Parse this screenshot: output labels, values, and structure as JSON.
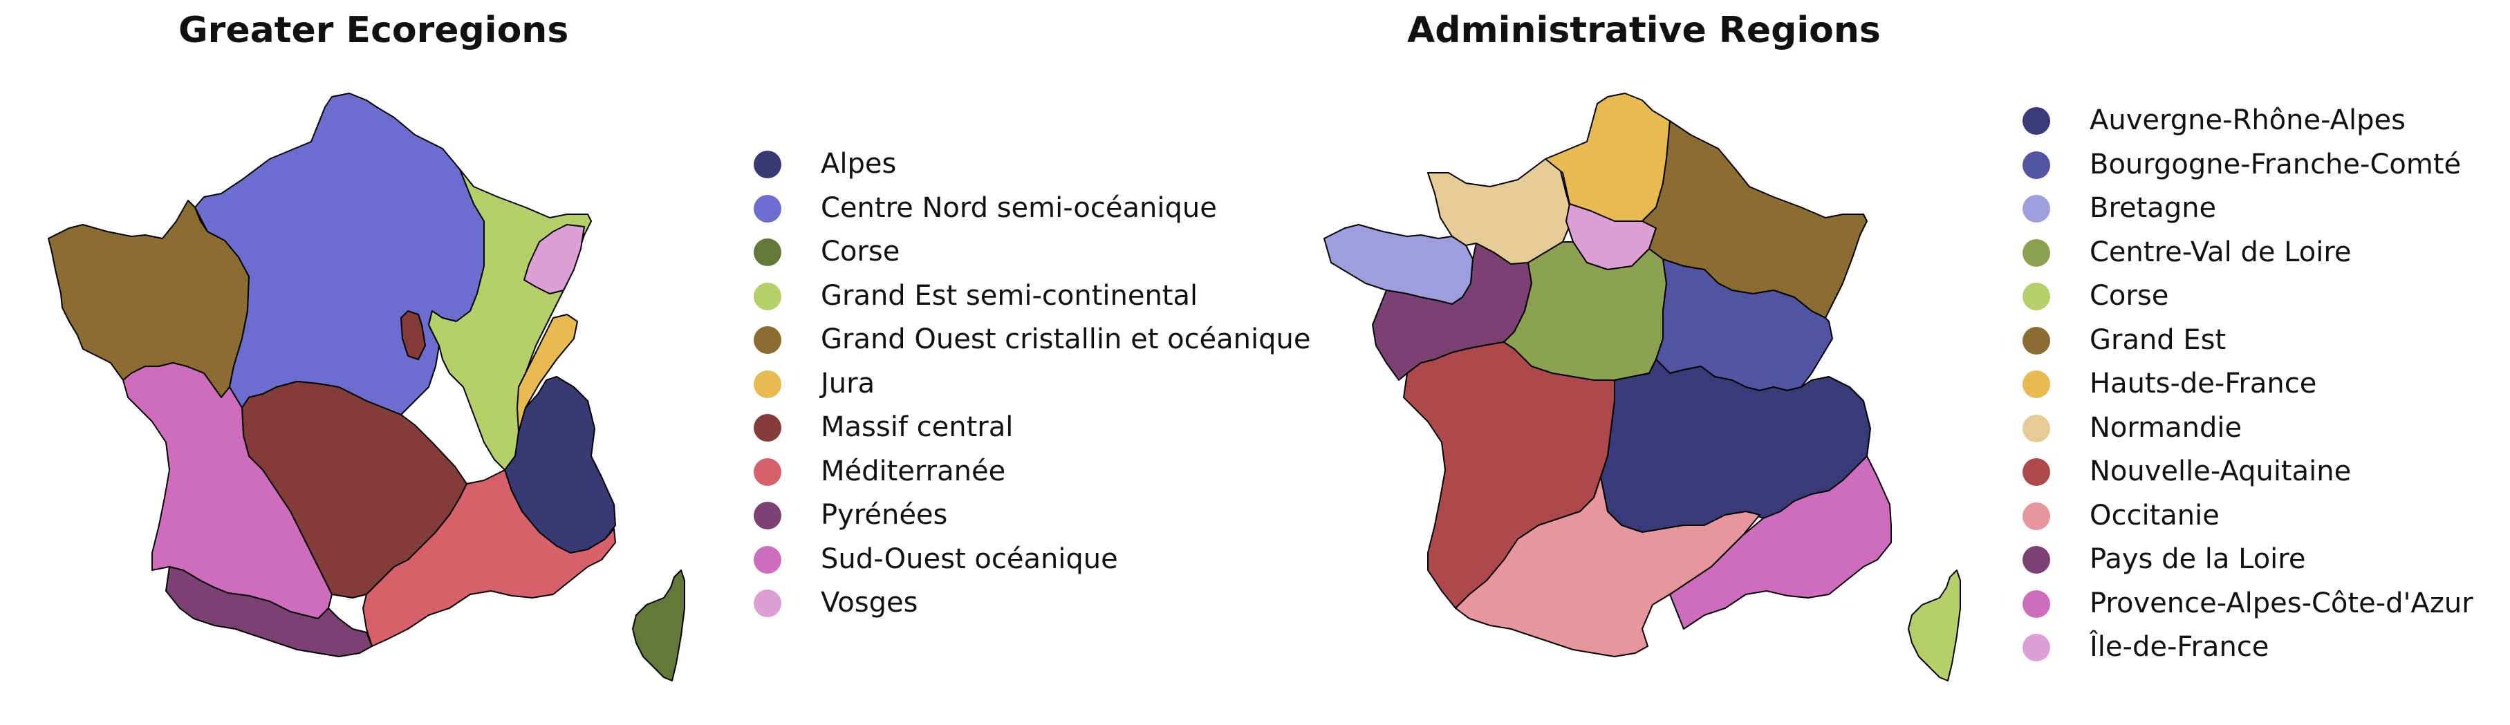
{
  "left_panel": {
    "title": "Greater Ecoregions",
    "legend": [
      {
        "label": "Alpes",
        "color": "#383a75"
      },
      {
        "label": "Centre Nord semi-océanique",
        "color": "#6b6ecf"
      },
      {
        "label": "Corse",
        "color": "#637939"
      },
      {
        "label": "Grand Est semi-continental",
        "color": "#b5cf6b"
      },
      {
        "label": "Grand Ouest cristallin et océanique",
        "color": "#8c6d31"
      },
      {
        "label": "Jura",
        "color": "#e7ba52"
      },
      {
        "label": "Massif central",
        "color": "#843c39"
      },
      {
        "label": "Méditerranée",
        "color": "#d6616b"
      },
      {
        "label": "Pyrénées",
        "color": "#7b4173"
      },
      {
        "label": "Sud-Ouest océanique",
        "color": "#ce6dbd"
      },
      {
        "label": "Vosges",
        "color": "#de9ed6"
      }
    ]
  },
  "right_panel": {
    "title": "Administrative Regions",
    "legend": [
      {
        "label": "Auvergne-Rhône-Alpes",
        "color": "#393b79"
      },
      {
        "label": "Bourgogne-Franche-Comté",
        "color": "#5254a3"
      },
      {
        "label": "Bretagne",
        "color": "#9c9ede"
      },
      {
        "label": "Centre-Val de Loire",
        "color": "#8ca252"
      },
      {
        "label": "Corse",
        "color": "#b5cf6b"
      },
      {
        "label": "Grand Est",
        "color": "#8c6d31"
      },
      {
        "label": "Hauts-de-France",
        "color": "#e7ba52"
      },
      {
        "label": "Normandie",
        "color": "#e7cb94"
      },
      {
        "label": "Nouvelle-Aquitaine",
        "color": "#ad494a"
      },
      {
        "label": "Occitanie",
        "color": "#e7969c"
      },
      {
        "label": "Pays de la Loire",
        "color": "#7b4173"
      },
      {
        "label": "Provence-Alpes-Côte-d'Azur",
        "color": "#ce6dbd"
      },
      {
        "label": "Île-de-France",
        "color": "#de9ed6"
      }
    ]
  }
}
